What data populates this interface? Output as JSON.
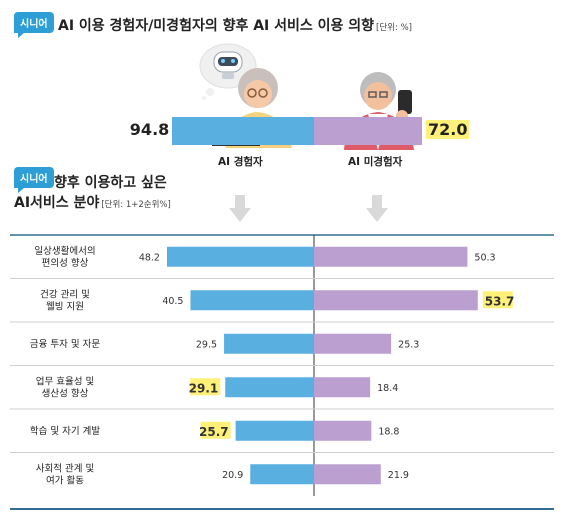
{
  "header": {
    "badge": "시니어",
    "title": "AI 이용 경험자/미경험자의 향후 AI 서비스 이용 의향",
    "unit": "[단위: %]"
  },
  "section2": {
    "badge": "시니어",
    "title_line1": "향후 이용하고 싶은",
    "title_line2": "AI서비스 분야",
    "unit": "[단위: 1+2순위%]"
  },
  "colors": {
    "experienced": "#59b0e0",
    "non_experienced": "#bb9fd0",
    "highlight": "#fff07a",
    "rule": "#2f6e94"
  },
  "chart_data": [
    {
      "type": "bar",
      "orientation": "horizontal-diverging",
      "categories": [
        "AI 경험자",
        "AI 미경험자"
      ],
      "values": [
        94.8,
        72.0
      ],
      "value_labels": [
        "94.8",
        "72.0"
      ]
    },
    {
      "type": "bar",
      "orientation": "horizontal-diverging",
      "categories": [
        "일상생활에서의 편의성 향상",
        "건강 관리 및 웰빙 지원",
        "금융 투자 및 자문",
        "업무 효율성 및 생산성 향상",
        "학습 및 자기 계발",
        "사회적 관계 및 여가 활동"
      ],
      "category_lines": [
        [
          "일상생활에서의",
          "편의성 향상"
        ],
        [
          "건강 관리 및",
          "웰빙 지원"
        ],
        [
          "금융 투자 및 자문"
        ],
        [
          "업무 효율성 및",
          "생산성 향상"
        ],
        [
          "학습 및 자기 계발"
        ],
        [
          "사회적 관계 및",
          "여가 활동"
        ]
      ],
      "series": [
        {
          "name": "AI 경험자",
          "values": [
            48.2,
            40.5,
            29.5,
            29.1,
            25.7,
            20.9
          ],
          "highlight": [
            false,
            false,
            false,
            true,
            true,
            false
          ]
        },
        {
          "name": "AI 미경험자",
          "values": [
            50.3,
            53.7,
            25.3,
            18.4,
            18.8,
            21.9
          ],
          "highlight": [
            false,
            true,
            false,
            false,
            false,
            false
          ]
        }
      ]
    }
  ]
}
